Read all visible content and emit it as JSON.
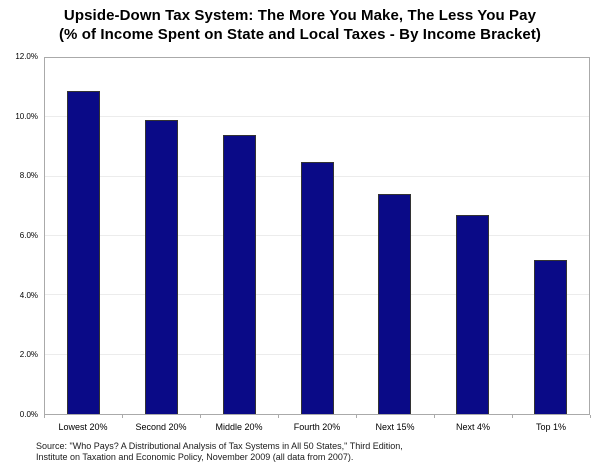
{
  "title": {
    "line1": "Upside-Down Tax System: The More You Make, The Less You Pay",
    "line2": "(% of Income Spent on State and Local Taxes - By Income Bracket)"
  },
  "source": {
    "line1": "Source: \"Who Pays? A Distributional Analysis of Tax Systems in All 50 States,\" Third Edition,",
    "line2": "Institute on Taxation and Economic Policy, November 2009 (all data from 2007)."
  },
  "colors": {
    "bar_fill": "#0a0a87",
    "bar_border": "#333333",
    "plot_border": "#aaaaaa",
    "gridline": "#ececec"
  },
  "chart_data": {
    "type": "bar",
    "categories": [
      "Lowest 20%",
      "Second 20%",
      "Middle 20%",
      "Fourth 20%",
      "Next 15%",
      "Next 4%",
      "Top 1%"
    ],
    "values": [
      10.9,
      9.9,
      9.4,
      8.5,
      7.4,
      6.7,
      5.2
    ],
    "title": "Upside-Down Tax System: The More You Make, The Less You Pay (% of Income Spent on State and Local Taxes - By Income Bracket)",
    "xlabel": "",
    "ylabel": "",
    "ylim": [
      0,
      12
    ],
    "ytick_step": 2,
    "ytick_labels": [
      "0.0%",
      "2.0%",
      "4.0%",
      "6.0%",
      "8.0%",
      "10.0%",
      "12.0%"
    ],
    "grid": true,
    "legend": false,
    "bar_color": "#0a0a87",
    "unit": "percent of income"
  }
}
